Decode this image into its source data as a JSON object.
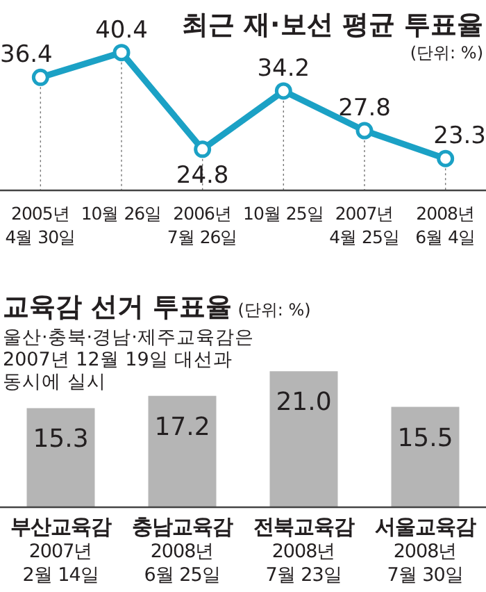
{
  "chart_data": [
    {
      "type": "line",
      "title": "최근 재·보선 평균 투표율",
      "subtitle": "(단위: %)",
      "categories": [
        "2005년\n4월 30일",
        "10월 26일",
        "2006년\n7월 26일",
        "10월 25일",
        "2007년\n4월 25일",
        "2008년\n6월 4일"
      ],
      "values": [
        36.4,
        40.4,
        24.8,
        34.2,
        27.8,
        23.3
      ],
      "value_labels": [
        "36.4",
        "40.4",
        "24.8",
        "34.2",
        "27.8",
        "23.3"
      ],
      "color": "#1ba1c5",
      "marker": "circle",
      "grid": "x",
      "tick_labels": "x"
    },
    {
      "type": "bar",
      "title": "교육감 선거 투표율",
      "subtitle": "(단위: %)",
      "annotations": [
        "울산·충북·경남·제주교육감은\n2007년 12월 19일 대선과\n동시에 실시"
      ],
      "categories": [
        "부산교육감\n2007년\n2월 14일",
        "충남교육감\n2008년\n6월 25일",
        "전북교육감\n2008년\n7월 23일",
        "서울교육감\n2008년\n7월 30일"
      ],
      "values": [
        15.3,
        17.2,
        21.0,
        15.5
      ],
      "value_labels": [
        "15.3",
        "17.2",
        "21.0",
        "15.5"
      ],
      "color": "#b5b5b5",
      "tick_labels": "x"
    }
  ]
}
